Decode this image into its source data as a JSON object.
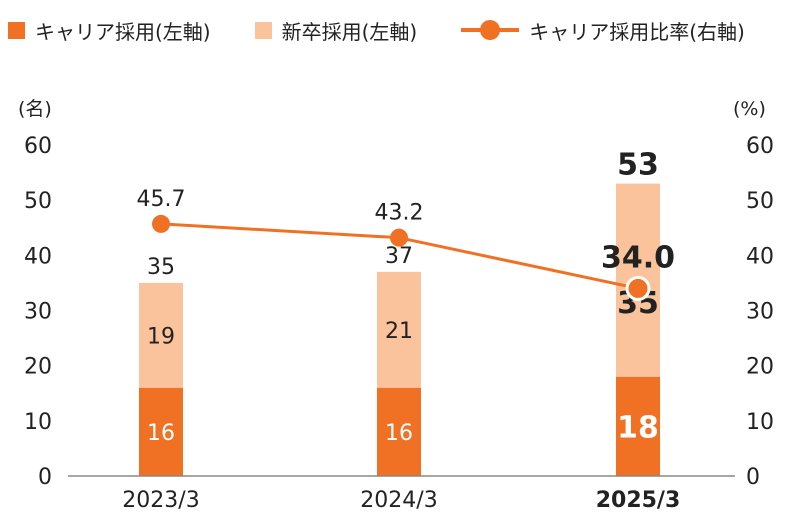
{
  "colors": {
    "career": "#F07123",
    "newgrad": "#FAC39B",
    "line": "#F07123",
    "axis": "#888888",
    "text": "#222222"
  },
  "legend": {
    "career": "キャリア採用(左軸)",
    "newgrad": "新卒採用(左軸)",
    "ratio": "キャリア採用比率(右軸)"
  },
  "chart_data": {
    "type": "bar",
    "stacked": true,
    "categories": [
      "2023/3",
      "2024/3",
      "2025/3"
    ],
    "highlight_category": "2025/3",
    "series": [
      {
        "name": "キャリア採用(左軸)",
        "kind": "bar",
        "axis": "left",
        "values": [
          16,
          16,
          18
        ]
      },
      {
        "name": "新卒採用(左軸)",
        "kind": "bar",
        "axis": "left",
        "values": [
          19,
          21,
          35
        ]
      },
      {
        "name": "キャリア採用比率(右軸)",
        "kind": "line",
        "axis": "right",
        "values": [
          45.7,
          43.2,
          34.0
        ]
      }
    ],
    "totals": [
      35,
      37,
      53
    ],
    "total_labels": [
      "35",
      "37",
      "53"
    ],
    "line_labels": [
      "45.7",
      "43.2",
      "34.0"
    ],
    "left_axis": {
      "unit": "(名)",
      "min": 0,
      "max": 60,
      "ticks": [
        0,
        10,
        20,
        30,
        40,
        50,
        60
      ]
    },
    "right_axis": {
      "unit": "(%)",
      "min": 0,
      "max": 60,
      "ticks": [
        0,
        10,
        20,
        30,
        40,
        50,
        60
      ]
    },
    "grid": false,
    "legend_position": "top"
  }
}
